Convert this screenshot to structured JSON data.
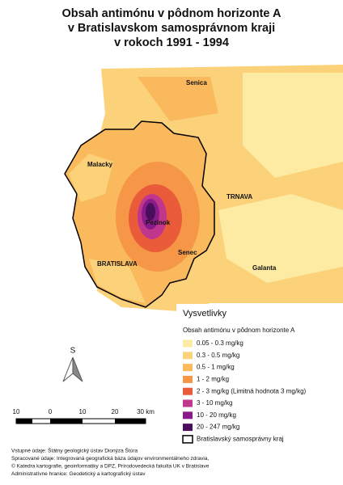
{
  "title": [
    "Obsah antimónu v pôdnom horizonte A",
    "v Bratislavskom samosprávnom kraji",
    "v rokoch 1991 - 1994"
  ],
  "places": [
    "Senica",
    "Malacky",
    "TRNAVA",
    "Pezinok",
    "Senec",
    "BRATISLAVA",
    "Galanta"
  ],
  "legend": {
    "title": "Vysvetlivky",
    "subtitle": "Obsah antimónu v pôdnom horizonte A",
    "items": [
      {
        "label": "0.05 - 0.3 mg/kg",
        "color": "#fdeaa3"
      },
      {
        "label": "0.3 - 0.5 mg/kg",
        "color": "#fbd27a"
      },
      {
        "label": "0.5 - 1 mg/kg",
        "color": "#f9b95c"
      },
      {
        "label": "1 - 2 mg/kg",
        "color": "#f59746"
      },
      {
        "label": "2 - 3 mg/kg (Limitná hodnota 3 mg/kg)",
        "color": "#ea5b3a"
      },
      {
        "label": "3 - 10 mg/kg",
        "color": "#c0368c"
      },
      {
        "label": "10 - 20 mg/kg",
        "color": "#8a1b8a"
      },
      {
        "label": "20 - 247 mg/kg",
        "color": "#4a0e5c"
      }
    ],
    "boundary": "Bratislavský samosprávny kraj"
  },
  "scale": [
    "10",
    "0",
    "10",
    "20",
    "30 km"
  ],
  "north": "S",
  "footer": [
    "Vstupné údaje: Štátny geologický ústav Dionýza Štúra",
    "Spracované údaje: Integrovaná geografická báza údajov environmentálneho zdravia,",
    "© Katedra kartografie, geoinformatiky a DPZ, Prírodovedecká fakulta UK v Bratislave",
    "Administratívne hranice: Geodetický a kartografický ústav"
  ]
}
